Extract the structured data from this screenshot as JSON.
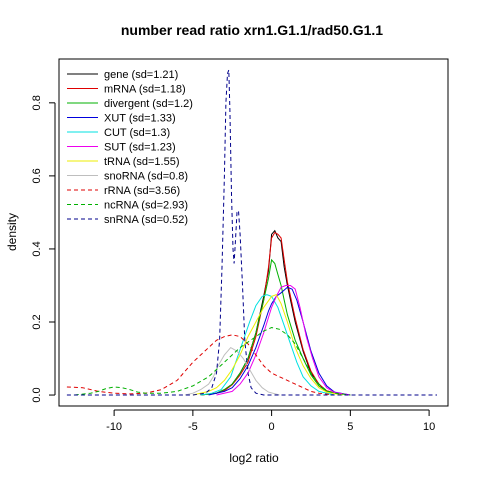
{
  "chart_data": {
    "type": "line",
    "title": "number read ratio xrn1.G1.1/rad50.G1.1",
    "xlabel": "log2 ratio",
    "ylabel": "density",
    "xlim": [
      -13.5,
      11.2
    ],
    "ylim": [
      -0.03,
      0.92
    ],
    "x_ticks": [
      -10,
      -5,
      0,
      5,
      10
    ],
    "y_ticks": [
      0.0,
      0.2,
      0.4,
      0.6,
      0.8
    ],
    "legend_position": "top-left",
    "grid": false,
    "series": [
      {
        "name": "gene (sd=1.21)",
        "color": "#000000",
        "dash": "solid",
        "points": [
          [
            -4.5,
            0
          ],
          [
            -3.5,
            0.005
          ],
          [
            -3,
            0.015
          ],
          [
            -2.5,
            0.03
          ],
          [
            -2,
            0.06
          ],
          [
            -1.5,
            0.1
          ],
          [
            -1,
            0.17
          ],
          [
            -0.5,
            0.27
          ],
          [
            -0.2,
            0.34
          ],
          [
            0,
            0.44
          ],
          [
            0.2,
            0.45
          ],
          [
            0.4,
            0.43
          ],
          [
            0.6,
            0.42
          ],
          [
            0.8,
            0.35
          ],
          [
            1,
            0.3
          ],
          [
            1.5,
            0.2
          ],
          [
            2,
            0.12
          ],
          [
            2.5,
            0.06
          ],
          [
            3,
            0.03
          ],
          [
            3.5,
            0.01
          ],
          [
            4.5,
            0
          ]
        ]
      },
      {
        "name": "mRNA (sd=1.18)",
        "color": "#DF0000",
        "dash": "solid",
        "points": [
          [
            -4.5,
            0
          ],
          [
            -3.5,
            0.005
          ],
          [
            -3,
            0.012
          ],
          [
            -2.5,
            0.028
          ],
          [
            -2,
            0.055
          ],
          [
            -1.5,
            0.09
          ],
          [
            -1,
            0.16
          ],
          [
            -0.5,
            0.26
          ],
          [
            -0.2,
            0.35
          ],
          [
            0,
            0.43
          ],
          [
            0.2,
            0.445
          ],
          [
            0.4,
            0.44
          ],
          [
            0.6,
            0.43
          ],
          [
            0.8,
            0.37
          ],
          [
            1,
            0.31
          ],
          [
            1.5,
            0.21
          ],
          [
            2,
            0.125
          ],
          [
            2.5,
            0.065
          ],
          [
            3,
            0.03
          ],
          [
            3.5,
            0.012
          ],
          [
            4.5,
            0
          ]
        ]
      },
      {
        "name": "divergent (sd=1.2)",
        "color": "#00B000",
        "dash": "solid",
        "points": [
          [
            -4.5,
            0
          ],
          [
            -3.5,
            0.005
          ],
          [
            -3,
            0.015
          ],
          [
            -2.5,
            0.03
          ],
          [
            -2,
            0.06
          ],
          [
            -1.5,
            0.1
          ],
          [
            -1,
            0.17
          ],
          [
            -0.5,
            0.26
          ],
          [
            -0.2,
            0.32
          ],
          [
            0,
            0.37
          ],
          [
            0.2,
            0.36
          ],
          [
            0.4,
            0.33
          ],
          [
            0.6,
            0.3
          ],
          [
            0.8,
            0.26
          ],
          [
            1,
            0.22
          ],
          [
            1.5,
            0.15
          ],
          [
            2,
            0.1
          ],
          [
            2.5,
            0.055
          ],
          [
            3,
            0.025
          ],
          [
            3.5,
            0.01
          ],
          [
            4.5,
            0
          ]
        ]
      },
      {
        "name": "XUT (sd=1.33)",
        "color": "#0000DD",
        "dash": "solid",
        "points": [
          [
            -4,
            0
          ],
          [
            -3,
            0.01
          ],
          [
            -2.5,
            0.02
          ],
          [
            -2,
            0.045
          ],
          [
            -1.5,
            0.08
          ],
          [
            -1,
            0.13
          ],
          [
            -0.5,
            0.19
          ],
          [
            -0.2,
            0.23
          ],
          [
            0,
            0.25
          ],
          [
            0.3,
            0.27
          ],
          [
            0.6,
            0.28
          ],
          [
            1,
            0.295
          ],
          [
            1.3,
            0.29
          ],
          [
            1.6,
            0.26
          ],
          [
            2,
            0.2
          ],
          [
            2.5,
            0.12
          ],
          [
            3,
            0.06
          ],
          [
            3.5,
            0.025
          ],
          [
            4,
            0.008
          ],
          [
            5,
            0
          ]
        ]
      },
      {
        "name": "CUT (sd=1.3)",
        "color": "#00E0E0",
        "dash": "solid",
        "points": [
          [
            -4.5,
            0
          ],
          [
            -3.8,
            0.005
          ],
          [
            -3.2,
            0.015
          ],
          [
            -2.6,
            0.05
          ],
          [
            -2.2,
            0.1
          ],
          [
            -1.8,
            0.15
          ],
          [
            -1.4,
            0.2
          ],
          [
            -1,
            0.245
          ],
          [
            -0.6,
            0.27
          ],
          [
            -0.3,
            0.275
          ],
          [
            0,
            0.27
          ],
          [
            0.4,
            0.24
          ],
          [
            0.8,
            0.19
          ],
          [
            1.2,
            0.14
          ],
          [
            1.6,
            0.09
          ],
          [
            2,
            0.05
          ],
          [
            2.5,
            0.025
          ],
          [
            3,
            0.01
          ],
          [
            4,
            0
          ]
        ]
      },
      {
        "name": "SUT (sd=1.23)",
        "color": "#EE00EE",
        "dash": "solid",
        "points": [
          [
            -3.5,
            0
          ],
          [
            -2.5,
            0.01
          ],
          [
            -2,
            0.03
          ],
          [
            -1.5,
            0.06
          ],
          [
            -1,
            0.11
          ],
          [
            -0.5,
            0.17
          ],
          [
            0,
            0.24
          ],
          [
            0.3,
            0.27
          ],
          [
            0.6,
            0.295
          ],
          [
            0.9,
            0.3
          ],
          [
            1.2,
            0.3
          ],
          [
            1.5,
            0.29
          ],
          [
            1.8,
            0.24
          ],
          [
            2.2,
            0.16
          ],
          [
            2.6,
            0.1
          ],
          [
            3,
            0.05
          ],
          [
            3.5,
            0.02
          ],
          [
            4,
            0.007
          ],
          [
            5,
            0
          ]
        ]
      },
      {
        "name": "tRNA (sd=1.55)",
        "color": "#EEEE00",
        "dash": "solid",
        "points": [
          [
            -5,
            0
          ],
          [
            -4,
            0.01
          ],
          [
            -3.5,
            0.02
          ],
          [
            -3,
            0.04
          ],
          [
            -2.5,
            0.07
          ],
          [
            -2,
            0.11
          ],
          [
            -1.5,
            0.16
          ],
          [
            -1,
            0.2
          ],
          [
            -0.5,
            0.24
          ],
          [
            0,
            0.27
          ],
          [
            0.3,
            0.275
          ],
          [
            0.6,
            0.25
          ],
          [
            1,
            0.2
          ],
          [
            1.5,
            0.13
          ],
          [
            2,
            0.08
          ],
          [
            2.5,
            0.045
          ],
          [
            3,
            0.02
          ],
          [
            3.5,
            0.008
          ],
          [
            4.5,
            0
          ]
        ]
      },
      {
        "name": "snoRNA (sd=0.8)",
        "color": "#BEBEBE",
        "dash": "solid",
        "points": [
          [
            -5.5,
            0
          ],
          [
            -5,
            0.005
          ],
          [
            -4.5,
            0.015
          ],
          [
            -4,
            0.03
          ],
          [
            -3.7,
            0.05
          ],
          [
            -3.4,
            0.08
          ],
          [
            -3,
            0.11
          ],
          [
            -2.6,
            0.13
          ],
          [
            -2.2,
            0.12
          ],
          [
            -1.8,
            0.1
          ],
          [
            -1.4,
            0.07
          ],
          [
            -1,
            0.04
          ],
          [
            -0.6,
            0.02
          ],
          [
            -0.2,
            0.008
          ],
          [
            0.5,
            0
          ]
        ]
      },
      {
        "name": "rRNA (sd=3.56)",
        "color": "#DF0000",
        "dash": "dashed",
        "points": [
          [
            -13,
            0.022
          ],
          [
            -12,
            0.02
          ],
          [
            -11,
            0.01
          ],
          [
            -10,
            0.005
          ],
          [
            -9,
            0.003
          ],
          [
            -8,
            0.005
          ],
          [
            -7,
            0.015
          ],
          [
            -6,
            0.04
          ],
          [
            -5,
            0.09
          ],
          [
            -4,
            0.13
          ],
          [
            -3.5,
            0.15
          ],
          [
            -3,
            0.16
          ],
          [
            -2.5,
            0.165
          ],
          [
            -2,
            0.16
          ],
          [
            -1.5,
            0.14
          ],
          [
            -1,
            0.11
          ],
          [
            -0.5,
            0.08
          ],
          [
            0,
            0.06
          ],
          [
            0.5,
            0.05
          ],
          [
            1,
            0.04
          ],
          [
            1.5,
            0.03
          ],
          [
            2,
            0.02
          ],
          [
            2.5,
            0.01
          ],
          [
            3,
            0.005
          ],
          [
            4,
            0
          ]
        ]
      },
      {
        "name": "ncRNA (sd=2.93)",
        "color": "#00B000",
        "dash": "dashed",
        "points": [
          [
            -12.5,
            0
          ],
          [
            -11.5,
            0.005
          ],
          [
            -11,
            0.01
          ],
          [
            -10.5,
            0.018
          ],
          [
            -10,
            0.022
          ],
          [
            -9.5,
            0.02
          ],
          [
            -9,
            0.015
          ],
          [
            -8.5,
            0.008
          ],
          [
            -8,
            0.005
          ],
          [
            -7,
            0.005
          ],
          [
            -6,
            0.01
          ],
          [
            -5,
            0.025
          ],
          [
            -4,
            0.05
          ],
          [
            -3,
            0.09
          ],
          [
            -2,
            0.13
          ],
          [
            -1,
            0.16
          ],
          [
            -0.5,
            0.175
          ],
          [
            0,
            0.185
          ],
          [
            0.5,
            0.18
          ],
          [
            1,
            0.165
          ],
          [
            1.5,
            0.14
          ],
          [
            2,
            0.1
          ],
          [
            2.5,
            0.06
          ],
          [
            3,
            0.03
          ],
          [
            3.5,
            0.012
          ],
          [
            4,
            0.005
          ],
          [
            5,
            0
          ]
        ]
      },
      {
        "name": "snRNA (sd=0.52)",
        "color": "#00008B",
        "dash": "dashed",
        "points": [
          [
            -13,
            0
          ],
          [
            -5,
            0
          ],
          [
            -4.2,
            0.005
          ],
          [
            -3.8,
            0.02
          ],
          [
            -3.5,
            0.06
          ],
          [
            -3.3,
            0.15
          ],
          [
            -3.15,
            0.35
          ],
          [
            -3,
            0.6
          ],
          [
            -2.9,
            0.8
          ],
          [
            -2.8,
            0.88
          ],
          [
            -2.72,
            0.89
          ],
          [
            -2.65,
            0.78
          ],
          [
            -2.55,
            0.55
          ],
          [
            -2.45,
            0.4
          ],
          [
            -2.38,
            0.36
          ],
          [
            -2.3,
            0.42
          ],
          [
            -2.2,
            0.5
          ],
          [
            -2.1,
            0.505
          ],
          [
            -2,
            0.44
          ],
          [
            -1.85,
            0.3
          ],
          [
            -1.7,
            0.15
          ],
          [
            -1.5,
            0.06
          ],
          [
            -1.3,
            0.02
          ],
          [
            -1,
            0.005
          ],
          [
            -0.5,
            0
          ],
          [
            10.5,
            0
          ]
        ]
      }
    ]
  }
}
